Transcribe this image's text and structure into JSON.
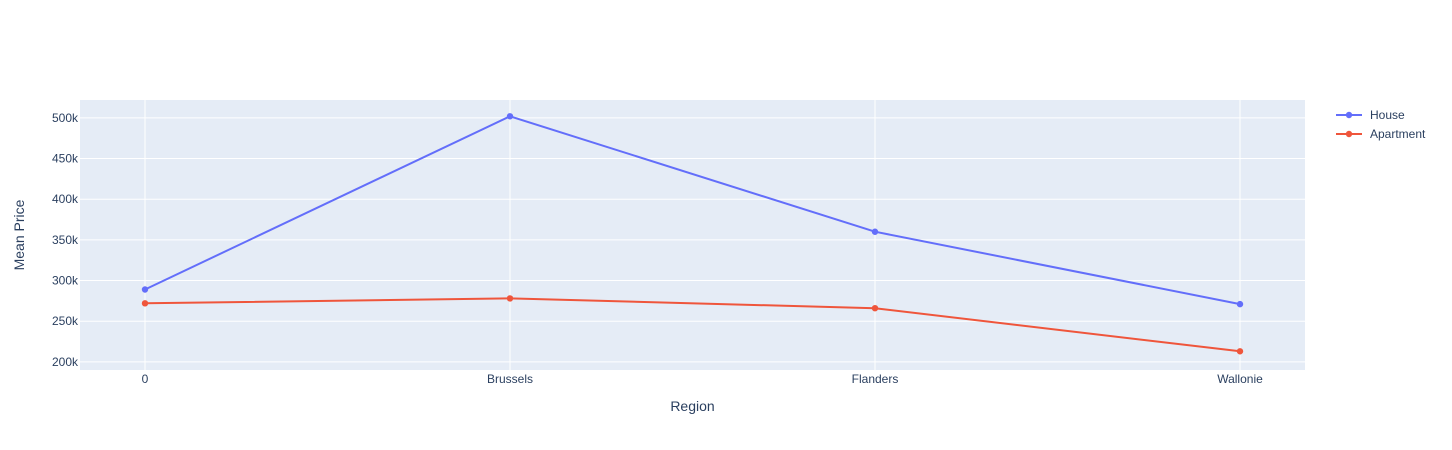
{
  "chart_data": {
    "type": "line",
    "title": "",
    "xlabel": "Region",
    "ylabel": "Mean Price",
    "categories": [
      "0",
      "Brussels",
      "Flanders",
      "Wallonie"
    ],
    "ylim": [
      190000,
      522000
    ],
    "yticks": [
      200000,
      250000,
      300000,
      350000,
      400000,
      450000,
      500000
    ],
    "ytick_labels": [
      "200k",
      "250k",
      "300k",
      "350k",
      "400k",
      "450k",
      "500k"
    ],
    "grid": true,
    "legend_position": "top-right",
    "background_color": "#e5ecf6",
    "series": [
      {
        "name": "House",
        "color": "#636efa",
        "values": [
          289000,
          502000,
          360000,
          271000
        ]
      },
      {
        "name": "Apartment",
        "color": "#ef553b",
        "values": [
          272000,
          278000,
          266000,
          213000
        ]
      }
    ]
  }
}
